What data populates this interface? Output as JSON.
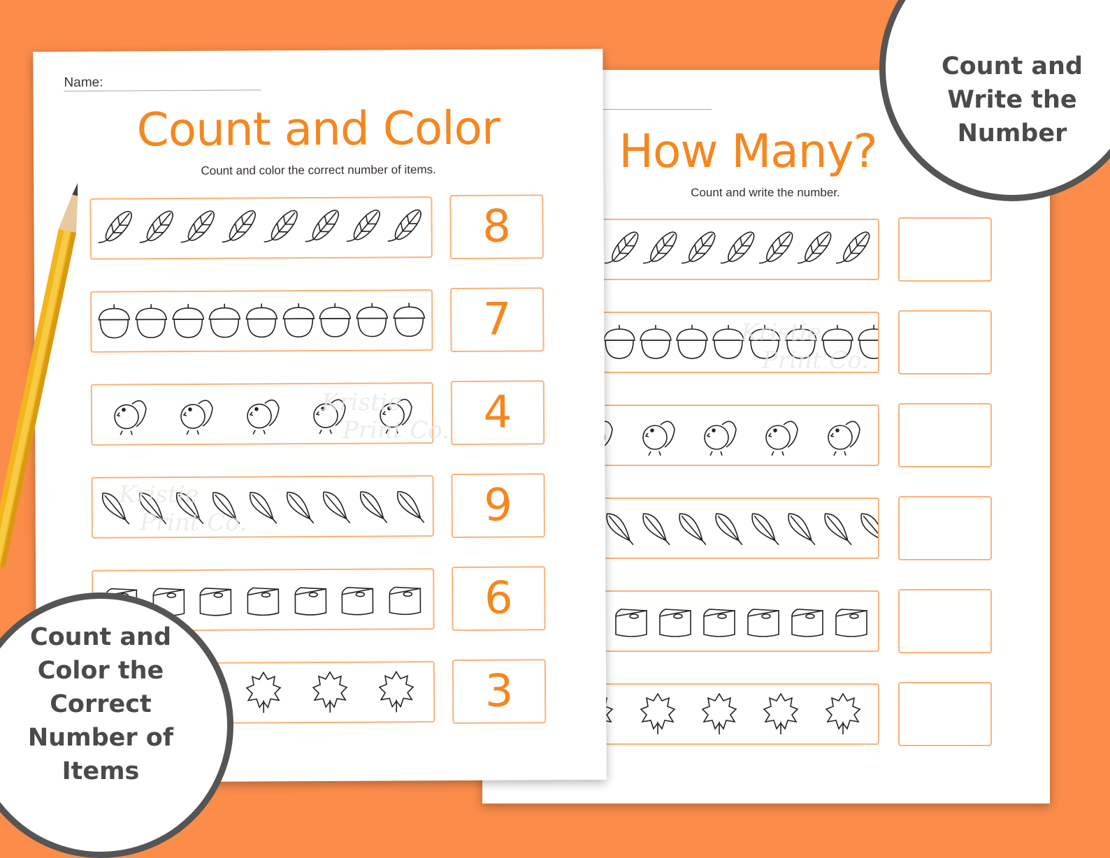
{
  "left_sheet": {
    "name_label": "Name:",
    "title": "Count and Color",
    "subtitle": "Count and color the correct number of items.",
    "rows": [
      {
        "icon": "wheat-icon",
        "count": 8,
        "answer": "8"
      },
      {
        "icon": "acorn-icon",
        "count": 9,
        "answer": "7"
      },
      {
        "icon": "turkey-icon",
        "count": 5,
        "answer": "4"
      },
      {
        "icon": "leaf-icon",
        "count": 9,
        "answer": "9"
      },
      {
        "icon": "pie-icon",
        "count": 7,
        "answer": "6"
      },
      {
        "icon": "maple-leaf-icon",
        "count": 5,
        "answer": "3"
      }
    ]
  },
  "right_sheet": {
    "title": "How Many?",
    "subtitle": "Count and write the number.",
    "rows": [
      {
        "icon": "wheat-icon",
        "count": 8,
        "answer": ""
      },
      {
        "icon": "acorn-icon",
        "count": 9,
        "answer": ""
      },
      {
        "icon": "turkey-icon",
        "count": 5,
        "answer": ""
      },
      {
        "icon": "leaf-icon",
        "count": 9,
        "answer": ""
      },
      {
        "icon": "pie-icon",
        "count": 7,
        "answer": ""
      },
      {
        "icon": "maple-leaf-icon",
        "count": 5,
        "answer": ""
      }
    ]
  },
  "badges": {
    "top_right": [
      "Count and",
      "Write the",
      "Number"
    ],
    "bottom_left": [
      "Count and",
      "Color the",
      "Correct",
      "Number of",
      "Items"
    ]
  },
  "watermark": [
    "Kristie",
    "Print Co."
  ],
  "colors": {
    "background": "#fb8c4a",
    "accent": "#f5871f",
    "box_border": "#f9b27a",
    "badge_border": "#555555"
  }
}
